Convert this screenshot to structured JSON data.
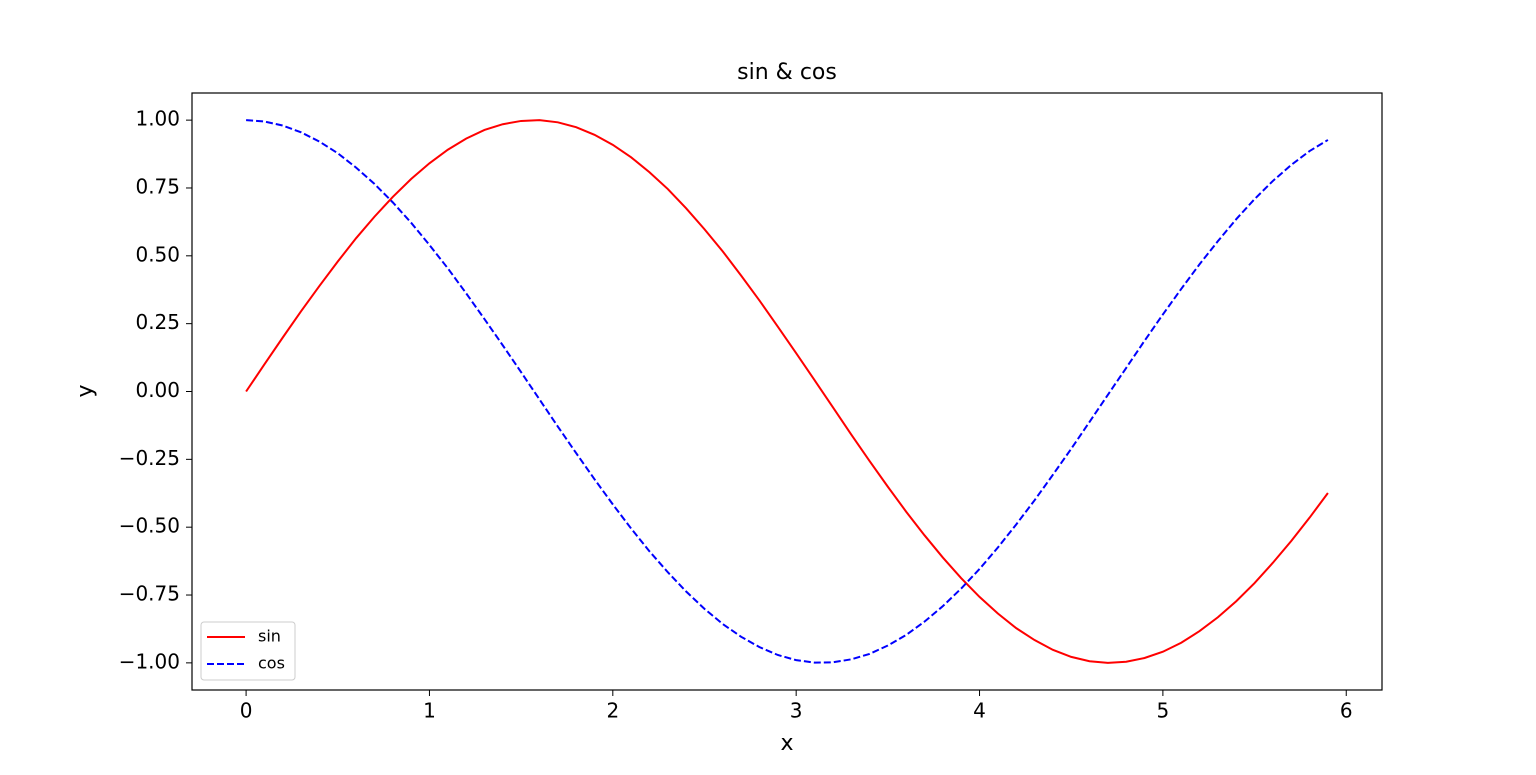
{
  "chart_data": {
    "type": "line",
    "title": "sin & cos",
    "x_label": "x",
    "y_label": "y",
    "x": [
      0,
      0.1,
      0.2,
      0.3,
      0.4,
      0.5,
      0.6,
      0.7,
      0.8,
      0.9,
      1.0,
      1.1,
      1.2,
      1.3,
      1.4,
      1.5,
      1.6,
      1.7,
      1.8,
      1.9,
      2.0,
      2.1,
      2.2,
      2.3,
      2.4,
      2.5,
      2.6,
      2.7,
      2.8,
      2.9,
      3.0,
      3.1,
      3.2,
      3.3,
      3.4,
      3.5,
      3.6,
      3.7,
      3.8,
      3.9,
      4.0,
      4.1,
      4.2,
      4.3,
      4.4,
      4.5,
      4.6,
      4.7,
      4.8,
      4.9,
      5.0,
      5.1,
      5.2,
      5.3,
      5.4,
      5.5,
      5.6,
      5.7,
      5.8,
      5.9
    ],
    "series": [
      {
        "name": "sin",
        "color": "#ff0000",
        "dash": "solid",
        "values": [
          0,
          0.1,
          0.199,
          0.296,
          0.389,
          0.479,
          0.565,
          0.644,
          0.717,
          0.783,
          0.841,
          0.891,
          0.932,
          0.964,
          0.985,
          0.997,
          1.0,
          0.992,
          0.974,
          0.946,
          0.909,
          0.863,
          0.808,
          0.746,
          0.675,
          0.598,
          0.516,
          0.427,
          0.335,
          0.239,
          0.141,
          0.042,
          -0.058,
          -0.158,
          -0.256,
          -0.351,
          -0.443,
          -0.53,
          -0.612,
          -0.688,
          -0.757,
          -0.818,
          -0.872,
          -0.916,
          -0.952,
          -0.978,
          -0.994,
          -1.0,
          -0.996,
          -0.982,
          -0.959,
          -0.926,
          -0.883,
          -0.832,
          -0.773,
          -0.706,
          -0.631,
          -0.551,
          -0.465,
          -0.374
        ]
      },
      {
        "name": "cos",
        "color": "#0000ff",
        "dash": "dashed",
        "values": [
          1,
          0.995,
          0.98,
          0.955,
          0.921,
          0.878,
          0.825,
          0.765,
          0.697,
          0.622,
          0.54,
          0.454,
          0.362,
          0.267,
          0.17,
          0.071,
          -0.029,
          -0.129,
          -0.227,
          -0.323,
          -0.416,
          -0.505,
          -0.589,
          -0.666,
          -0.737,
          -0.801,
          -0.857,
          -0.904,
          -0.942,
          -0.971,
          -0.99,
          -0.999,
          -0.998,
          -0.987,
          -0.967,
          -0.936,
          -0.897,
          -0.848,
          -0.791,
          -0.726,
          -0.654,
          -0.575,
          -0.49,
          -0.401,
          -0.307,
          -0.211,
          -0.112,
          -0.012,
          0.087,
          0.187,
          0.284,
          0.378,
          0.469,
          0.554,
          0.635,
          0.709,
          0.776,
          0.835,
          0.886,
          0.927
        ]
      }
    ],
    "xlim": [
      -0.295,
      6.195
    ],
    "ylim": [
      -1.1,
      1.1
    ],
    "xticks": [
      0,
      1,
      2,
      3,
      4,
      5,
      6
    ],
    "yticks": [
      {
        "value": -1,
        "label": "−1.00"
      },
      {
        "value": -0.75,
        "label": "−0.75"
      },
      {
        "value": -0.5,
        "label": "−0.50"
      },
      {
        "value": -0.25,
        "label": "−0.25"
      },
      {
        "value": 0,
        "label": "0.00"
      },
      {
        "value": 0.25,
        "label": "0.25"
      },
      {
        "value": 0.5,
        "label": "0.50"
      },
      {
        "value": 0.75,
        "label": "0.75"
      },
      {
        "value": 1,
        "label": "1.00"
      }
    ],
    "grid": false,
    "legend": "lower left"
  }
}
